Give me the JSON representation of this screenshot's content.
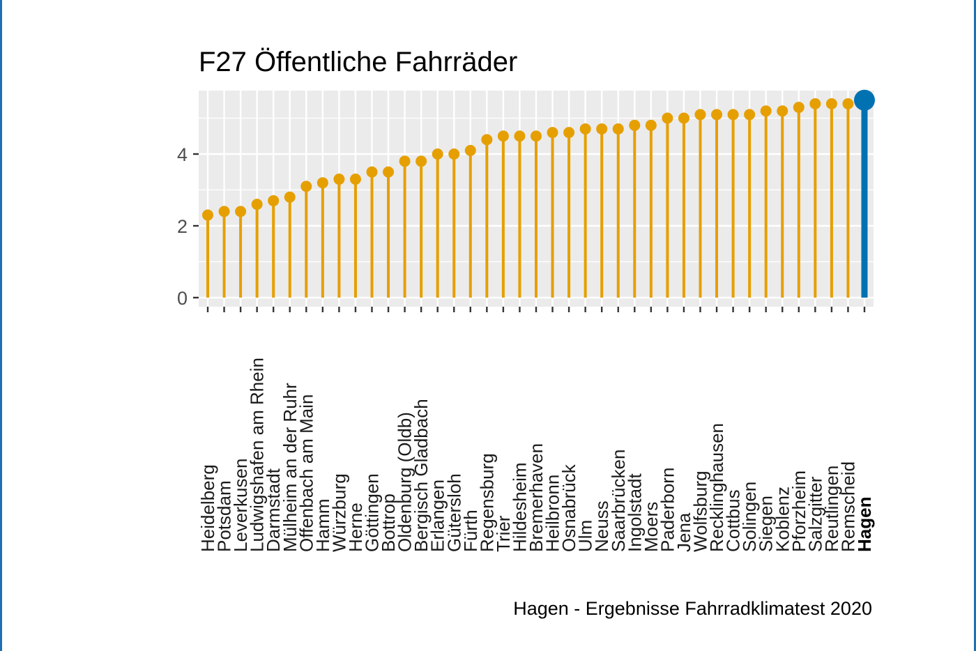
{
  "chart_data": {
    "type": "lollipop",
    "title": "F27 Öffentliche Fahrräder",
    "caption": "Hagen - Ergebnisse Fahrradklimatest 2020",
    "xlabel": "",
    "ylabel": "",
    "ylim": [
      0,
      5.8
    ],
    "yticks": [
      0,
      2,
      4
    ],
    "grid": true,
    "highlight": "Hagen",
    "colors": {
      "default": "#E69F00",
      "highlight": "#0072B2",
      "panel": "#EBEBEB",
      "grid": "#FFFFFF"
    },
    "categories": [
      "Heidelberg",
      "Potsdam",
      "Leverkusen",
      "Ludwigshafen am Rhein",
      "Darmstadt",
      "Mülheim an der Ruhr",
      "Offenbach am Main",
      "Hamm",
      "Würzburg",
      "Herne",
      "Göttingen",
      "Bottrop",
      "Oldenburg (Oldb)",
      "Bergisch Gladbach",
      "Erlangen",
      "Gütersloh",
      "Fürth",
      "Regensburg",
      "Trier",
      "Hildesheim",
      "Bremerhaven",
      "Heilbronn",
      "Osnabrück",
      "Ulm",
      "Neuss",
      "Saarbrücken",
      "Ingolstadt",
      "Moers",
      "Paderborn",
      "Jena",
      "Wolfsburg",
      "Recklinghausen",
      "Cottbus",
      "Solingen",
      "Siegen",
      "Koblenz",
      "Pforzheim",
      "Salzgitter",
      "Reutlingen",
      "Remscheid",
      "Hagen"
    ],
    "values": [
      2.3,
      2.4,
      2.4,
      2.6,
      2.7,
      2.8,
      3.1,
      3.2,
      3.3,
      3.3,
      3.5,
      3.5,
      3.8,
      3.8,
      4.0,
      4.0,
      4.1,
      4.4,
      4.5,
      4.5,
      4.5,
      4.6,
      4.6,
      4.7,
      4.7,
      4.7,
      4.8,
      4.8,
      5.0,
      5.0,
      5.1,
      5.1,
      5.1,
      5.1,
      5.2,
      5.2,
      5.3,
      5.4,
      5.4,
      5.4,
      5.5
    ]
  }
}
